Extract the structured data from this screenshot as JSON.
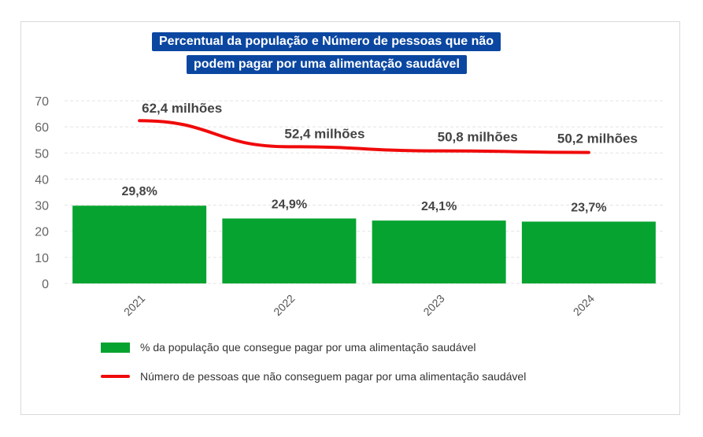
{
  "chart_data": {
    "type": "bar+line",
    "title_lines": [
      "Percentual da população e Número de pessoas que não",
      "podem pagar por uma alimentação saudável"
    ],
    "categories": [
      "2021",
      "2022",
      "2023",
      "2024"
    ],
    "ylim": [
      0,
      70
    ],
    "yticks": [
      "0",
      "10",
      "20",
      "30",
      "40",
      "50",
      "60",
      "70"
    ],
    "ytick_values": [
      0,
      10,
      20,
      30,
      40,
      50,
      60,
      70
    ],
    "grid": true,
    "series": [
      {
        "name": "% da população que consegue pagar por uma alimentação saudável",
        "type": "bar",
        "color": "#06a330",
        "values": [
          29.8,
          24.9,
          24.1,
          23.7
        ],
        "labels": [
          "29,8%",
          "24,9%",
          "24,1%",
          "23,7%"
        ]
      },
      {
        "name": "Número de pessoas que não conseguem pagar por uma alimentação saudável",
        "type": "line",
        "color": "#f00a0a",
        "values": [
          62.4,
          52.4,
          50.8,
          50.2
        ],
        "labels": [
          "62,4 milhões",
          "52,4 milhões",
          "50,8 milhões",
          "50,2 milhões"
        ]
      }
    ],
    "legend_position": "bottom"
  }
}
